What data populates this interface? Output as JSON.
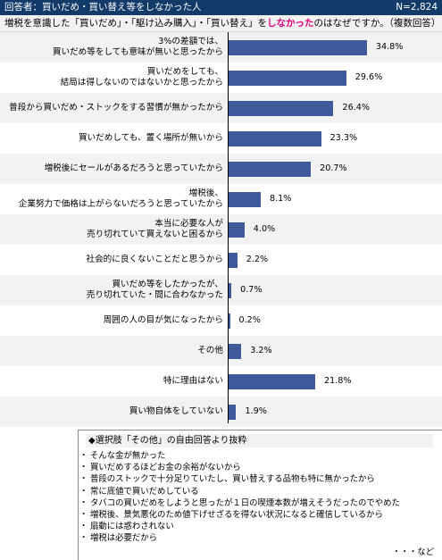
{
  "header": {
    "respondents": "回答者：買いだめ・買い替え等をしなかった人",
    "n": "N=2,824"
  },
  "question": {
    "pre": "増税を意識した「買いだめ」・「駆け込み購入」・「買い替え」を",
    "emph": "しなかった",
    "post": "のはなぜですか。（複数回答）"
  },
  "chart_data": {
    "type": "bar",
    "orientation": "horizontal",
    "title": "増税を意識した「買いだめ」・「駆け込み購入」・「買い替え」をしなかったのはなぜですか。（複数回答）",
    "xlim": [
      0,
      40
    ],
    "bar_color": "#3f5a9a",
    "categories": [
      [
        "3%の差額では、",
        "買いだめ等をしても意味が無いと思ったから"
      ],
      [
        "買いだめをしても、",
        "結局は得しないのではないかと思ったから"
      ],
      [
        "普段から買いだめ・ストックをする習慣が無かったから"
      ],
      [
        "買いだめしても、置く場所が無いから"
      ],
      [
        "増税後にセールがあるだろうと思っていたから"
      ],
      [
        "増税後、",
        "企業努力で価格は上がらないだろうと思っていたから"
      ],
      [
        "本当に必要な人が",
        "売り切れていて買えないと困るから"
      ],
      [
        "社会的に良くないことだと思うから"
      ],
      [
        "買いだめ等をしたかったが、",
        "売り切れていた・間に合わなかった"
      ],
      [
        "周囲の人の目が気になったから"
      ],
      [
        "その他"
      ],
      [
        "特に理由はない"
      ],
      [
        "買い物自体をしていない"
      ]
    ],
    "values": [
      34.8,
      29.6,
      26.4,
      23.3,
      20.7,
      8.1,
      4.0,
      2.2,
      0.7,
      0.2,
      3.2,
      21.8,
      1.9
    ],
    "value_labels": [
      "34.8%",
      "29.6%",
      "26.4%",
      "23.3%",
      "20.7%",
      "8.1%",
      "4.0%",
      "2.2%",
      "0.7%",
      "0.2%",
      "3.2%",
      "21.8%",
      "1.9%"
    ]
  },
  "free_answers": {
    "title": "◆選択肢「その他」の自由回答より抜粋",
    "items": [
      "そんな金が無かった",
      "買いだめするほどお金の余裕がないから",
      "普段のストックで十分足りていたし、買い替えする品物も特に無かったから",
      "常に底値で買いだめしている",
      "タバコの買いだめをしようと思ったが１日の喫煙本数が増えそうだったのでやめた",
      "増税後、景気悪化のため値下げせざるを得ない状況になると確信しているから",
      "扇動には惑わされない",
      "増税は必要だから"
    ],
    "etc": "・・・など"
  }
}
